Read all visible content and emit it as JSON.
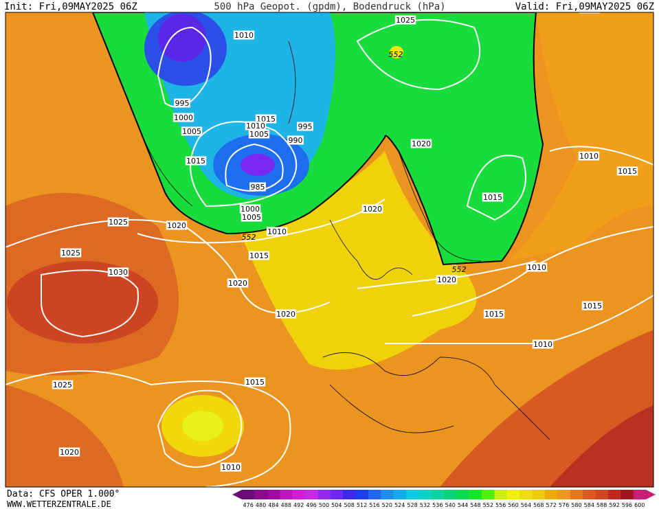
{
  "header": {
    "init": "Init: Fri,09MAY2025 06Z",
    "title": "500 hPa Geopot. (gpdm), Bodendruck (hPa)",
    "valid": "Valid: Fri,09MAY2025 06Z"
  },
  "map": {
    "isobar_labels": [
      "1010",
      "1025",
      "1010",
      "995",
      "1000",
      "1005",
      "1015",
      "1010",
      "1005",
      "995",
      "990",
      "1020",
      "1015",
      "1010",
      "1015",
      "985",
      "1015",
      "1020",
      "1000",
      "1005",
      "1025",
      "1020",
      "1010",
      "1025",
      "1015",
      "1010",
      "1030",
      "1020",
      "1020",
      "1020",
      "1015",
      "1015",
      "1010",
      "1025",
      "1015",
      "1020",
      "1010"
    ],
    "geopotential_labels": [
      "552",
      "552",
      "552"
    ]
  },
  "colorbar": {
    "labels": [
      "476",
      "480",
      "484",
      "488",
      "492",
      "496",
      "500",
      "504",
      "508",
      "512",
      "516",
      "520",
      "524",
      "528",
      "532",
      "536",
      "540",
      "544",
      "548",
      "552",
      "556",
      "560",
      "564",
      "568",
      "572",
      "576",
      "580",
      "584",
      "588",
      "592",
      "596",
      "600"
    ],
    "colors": [
      "#6e0a78",
      "#8c0a8c",
      "#a00aa0",
      "#be14be",
      "#d21ed2",
      "#c828e6",
      "#9628f0",
      "#6e28f0",
      "#3c28e6",
      "#1e3cf0",
      "#1e64f0",
      "#1e8cf0",
      "#14aaf0",
      "#0ac8e6",
      "#0ad2c8",
      "#0ad2a0",
      "#0ad278",
      "#0adc50",
      "#14e628",
      "#50f00a",
      "#c8f00a",
      "#f0f00a",
      "#f0dc0a",
      "#f0c80a",
      "#f0aa0a",
      "#f0961e",
      "#e6781e",
      "#dc5a1e",
      "#d2461e",
      "#be281e",
      "#a0141e",
      "#c81e78"
    ]
  },
  "footer": {
    "data": "Data: CFS OPER 1.000°",
    "site": "WWW.WETTERZENTRALE.DE"
  }
}
